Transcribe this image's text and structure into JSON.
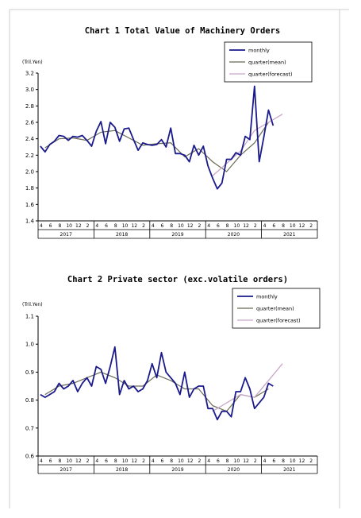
{
  "colors": {
    "monthly": "#1a1a8c",
    "quarter_mean": "#6b6b55",
    "quarter_forecast": "#c8a8c8",
    "axis": "#000000",
    "frame": "#cccccc"
  },
  "chart_data": [
    {
      "type": "line",
      "title": "Chart 1 Total Value of Machinery Orders",
      "unit": "(Tril.Yen)",
      "ylim": [
        1.4,
        3.2
      ],
      "yticks": [
        "1.4",
        "1.6",
        "1.8",
        "2.0",
        "2.2",
        "2.4",
        "2.6",
        "2.8",
        "3.0",
        "3.2"
      ],
      "month_labels": [
        "4",
        "6",
        "8",
        "10",
        "12",
        "2",
        "4",
        "6",
        "8",
        "10",
        "12",
        "2",
        "4",
        "6",
        "8",
        "10",
        "12",
        "2",
        "4",
        "6",
        "8",
        "10",
        "12",
        "2",
        "4",
        "6",
        "8",
        "10",
        "12",
        "2"
      ],
      "year_labels": [
        "2017",
        "2018",
        "2019",
        "2020",
        "2021"
      ],
      "legend": [
        "monthly",
        "quarter(mean)",
        "quarter(forecast)"
      ],
      "series": [
        {
          "name": "monthly",
          "values": [
            2.31,
            2.24,
            2.33,
            2.37,
            2.44,
            2.43,
            2.38,
            2.43,
            2.42,
            2.44,
            2.38,
            2.31,
            2.49,
            2.61,
            2.34,
            2.6,
            2.54,
            2.37,
            2.52,
            2.53,
            2.39,
            2.26,
            2.35,
            2.33,
            2.32,
            2.33,
            2.39,
            2.3,
            2.53,
            2.22,
            2.22,
            2.2,
            2.12,
            2.32,
            2.2,
            2.31,
            2.07,
            1.92,
            1.79,
            1.86,
            2.15,
            2.15,
            2.23,
            2.2,
            2.43,
            2.39,
            3.04,
            2.12,
            2.42,
            2.75,
            2.56
          ]
        },
        {
          "name": "quarter(mean)",
          "values": [
            2.29,
            2.29,
            2.29,
            2.4,
            2.4,
            2.4,
            2.41,
            2.41,
            2.41,
            2.38,
            2.38,
            2.38,
            2.48,
            2.48,
            2.48,
            2.5,
            2.5,
            2.5,
            2.41,
            2.41,
            2.41,
            2.32,
            2.32,
            2.32,
            2.34,
            2.34,
            2.34,
            2.35,
            2.35,
            2.35,
            2.18,
            2.18,
            2.18,
            2.28,
            2.28,
            2.28,
            2.12,
            2.12,
            2.12,
            2.0,
            2.0,
            2.0,
            2.2,
            2.2,
            2.2,
            2.35,
            2.35,
            2.35,
            2.6,
            2.6,
            2.6
          ]
        },
        {
          "name": "quarter(forecast)",
          "points": [
            [
              37,
              1.95
            ],
            [
              43,
              2.25
            ],
            [
              46,
              2.5
            ],
            [
              52,
              2.7
            ]
          ]
        }
      ]
    },
    {
      "type": "line",
      "title": "Chart 2 Private sector (exc.volatile orders)",
      "unit": "(Tril.Yen)",
      "ylim": [
        0.6,
        1.1
      ],
      "yticks": [
        "0.6",
        "0.7",
        "0.8",
        "0.9",
        "1.0",
        "1.1"
      ],
      "month_labels": [
        "4",
        "6",
        "8",
        "10",
        "12",
        "2",
        "4",
        "6",
        "8",
        "10",
        "12",
        "2",
        "4",
        "6",
        "8",
        "10",
        "12",
        "2",
        "4",
        "6",
        "8",
        "10",
        "12",
        "2",
        "4",
        "6",
        "8",
        "10",
        "12",
        "2"
      ],
      "year_labels": [
        "2017",
        "2018",
        "2019",
        "2020",
        "2021"
      ],
      "legend": [
        "monthly",
        "quarter(mean)",
        "quarter(forecast)"
      ],
      "series": [
        {
          "name": "monthly",
          "values": [
            0.82,
            0.81,
            0.82,
            0.83,
            0.86,
            0.84,
            0.85,
            0.87,
            0.83,
            0.86,
            0.88,
            0.85,
            0.92,
            0.91,
            0.86,
            0.92,
            0.99,
            0.82,
            0.87,
            0.84,
            0.85,
            0.83,
            0.84,
            0.87,
            0.93,
            0.88,
            0.97,
            0.9,
            0.88,
            0.86,
            0.82,
            0.9,
            0.81,
            0.84,
            0.85,
            0.85,
            0.77,
            0.77,
            0.73,
            0.76,
            0.76,
            0.74,
            0.83,
            0.83,
            0.88,
            0.84,
            0.77,
            0.79,
            0.81,
            0.86,
            0.85
          ]
        },
        {
          "name": "quarter(mean)",
          "values": [
            0.82,
            0.82,
            0.82,
            0.85,
            0.85,
            0.85,
            0.86,
            0.86,
            0.86,
            0.88,
            0.88,
            0.88,
            0.9,
            0.9,
            0.9,
            0.88,
            0.88,
            0.88,
            0.85,
            0.85,
            0.85,
            0.85,
            0.85,
            0.85,
            0.89,
            0.89,
            0.89,
            0.87,
            0.87,
            0.87,
            0.84,
            0.84,
            0.84,
            0.84,
            0.84,
            0.84,
            0.78,
            0.78,
            0.78,
            0.76,
            0.76,
            0.76,
            0.82,
            0.82,
            0.82,
            0.81,
            0.81,
            0.81,
            0.84,
            0.84,
            0.84
          ]
        },
        {
          "name": "quarter(forecast)",
          "points": [
            [
              37,
              0.76
            ],
            [
              43,
              0.82
            ],
            [
              46,
              0.81
            ],
            [
              52,
              0.93
            ]
          ]
        }
      ]
    }
  ]
}
